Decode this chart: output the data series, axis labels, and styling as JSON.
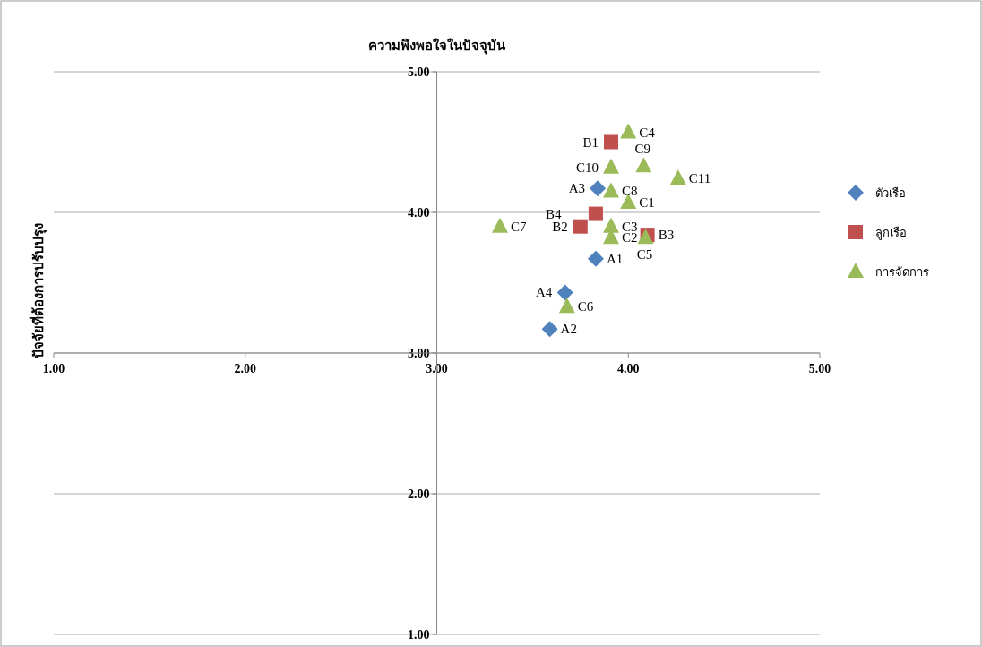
{
  "chart_data": {
    "type": "scatter",
    "title": "ความพึงพอใจในปัจจุบัน",
    "ylabel": "ปัจจัยที่ต้องการปรับปรุง",
    "xlim": [
      1,
      5
    ],
    "ylim": [
      1,
      5
    ],
    "xticks": [
      {
        "value": 1,
        "label": "1.00"
      },
      {
        "value": 2,
        "label": "2.00"
      },
      {
        "value": 3,
        "label": "3.00"
      },
      {
        "value": 4,
        "label": "4.00"
      },
      {
        "value": 5,
        "label": "5.00"
      }
    ],
    "yticks": [
      {
        "value": 1,
        "label": "1.00"
      },
      {
        "value": 2,
        "label": "2.00"
      },
      {
        "value": 3,
        "label": "3.00"
      },
      {
        "value": 4,
        "label": "4.00"
      },
      {
        "value": 5,
        "label": "5.00"
      }
    ],
    "grid": "y",
    "legend": "right",
    "series": [
      {
        "name": "ตัวเรือ",
        "color": "#4f81bd",
        "marker": "diamond",
        "x": [
          3.83,
          3.59,
          3.84,
          3.67
        ],
        "values": [
          3.67,
          3.17,
          4.17,
          3.43
        ]
      },
      {
        "name": "ลูกเรือ",
        "color": "#c0504d",
        "marker": "square",
        "x": [
          3.91,
          3.75,
          4.1,
          3.83
        ],
        "values": [
          4.5,
          3.9,
          3.84,
          3.99
        ]
      },
      {
        "name": "การจัดการ",
        "color": "#9bbb59",
        "marker": "triangle",
        "x": [
          4.0,
          3.91,
          3.91,
          4.0,
          4.09,
          3.68,
          3.33,
          3.91,
          4.08,
          3.91,
          4.26
        ],
        "values": [
          4.07,
          3.82,
          3.9,
          4.57,
          3.82,
          3.33,
          3.9,
          4.15,
          4.33,
          4.32,
          4.24
        ]
      }
    ],
    "annotations": [
      {
        "text": "A1",
        "x": 3.83,
        "y": 3.67
      },
      {
        "text": "A2",
        "x": 3.59,
        "y": 3.17
      },
      {
        "text": "A3",
        "x": 3.84,
        "y": 4.17
      },
      {
        "text": "A4",
        "x": 3.67,
        "y": 3.43
      },
      {
        "text": "B1",
        "x": 3.91,
        "y": 4.5
      },
      {
        "text": "B2",
        "x": 3.75,
        "y": 3.9
      },
      {
        "text": "B3",
        "x": 4.1,
        "y": 3.84
      },
      {
        "text": "B4",
        "x": 3.83,
        "y": 3.99
      },
      {
        "text": "C1",
        "x": 4.0,
        "y": 4.07
      },
      {
        "text": "C2",
        "x": 3.91,
        "y": 3.82
      },
      {
        "text": "C3",
        "x": 3.91,
        "y": 3.9
      },
      {
        "text": "C4",
        "x": 4.0,
        "y": 4.57
      },
      {
        "text": "C5",
        "x": 4.09,
        "y": 3.82
      },
      {
        "text": "C6",
        "x": 3.68,
        "y": 3.33
      },
      {
        "text": "C7",
        "x": 3.33,
        "y": 3.9
      },
      {
        "text": "C8",
        "x": 3.91,
        "y": 4.15
      },
      {
        "text": "C9",
        "x": 4.08,
        "y": 4.33
      },
      {
        "text": "C10",
        "x": 3.91,
        "y": 4.32
      },
      {
        "text": "C11",
        "x": 4.26,
        "y": 4.24
      }
    ]
  }
}
